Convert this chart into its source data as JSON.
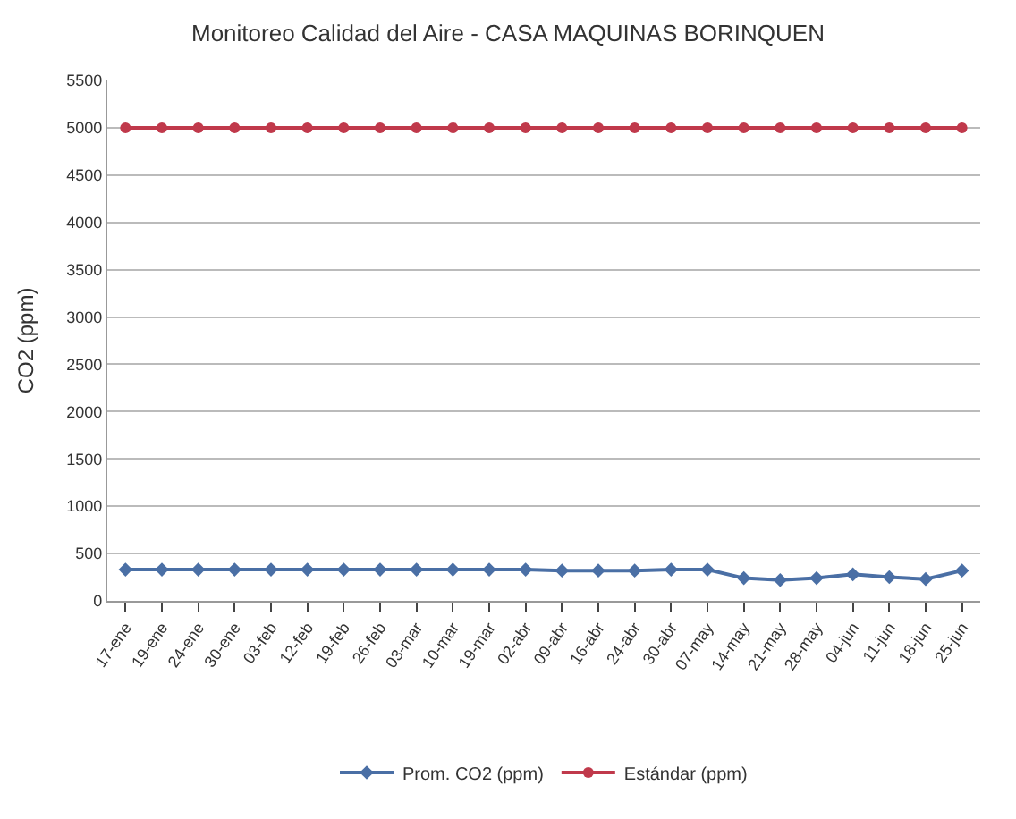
{
  "chart_data": {
    "type": "line",
    "title": "Monitoreo Calidad del Aire - CASA MAQUINAS BORINQUEN",
    "ylabel": "CO2 (ppm)",
    "categories": [
      "17-ene",
      "19-ene",
      "24-ene",
      "30-ene",
      "03-feb",
      "12-feb",
      "19-feb",
      "26-feb",
      "03-mar",
      "10-mar",
      "19-mar",
      "02-abr",
      "09-abr",
      "16-abr",
      "24-abr",
      "30-abr",
      "07-may",
      "14-may",
      "21-may",
      "28-may",
      "04-jun",
      "11-jun",
      "18-jun",
      "25-jun"
    ],
    "series": [
      {
        "name": "Prom. CO2 (ppm)",
        "color": "#4a6fa5",
        "marker": "diamond",
        "values": [
          330,
          330,
          330,
          330,
          330,
          330,
          330,
          330,
          330,
          330,
          330,
          330,
          320,
          320,
          320,
          330,
          330,
          240,
          220,
          240,
          280,
          250,
          230,
          320
        ]
      },
      {
        "name": "Estándar (ppm)",
        "color": "#c0394b",
        "marker": "circle",
        "values": [
          5000,
          5000,
          5000,
          5000,
          5000,
          5000,
          5000,
          5000,
          5000,
          5000,
          5000,
          5000,
          5000,
          5000,
          5000,
          5000,
          5000,
          5000,
          5000,
          5000,
          5000,
          5000,
          5000,
          5000
        ]
      }
    ],
    "ylim": [
      0,
      5500
    ],
    "yticks": [
      0,
      500,
      1000,
      1500,
      2000,
      2500,
      3000,
      3500,
      4000,
      4500,
      5000,
      5500
    ],
    "grid": "y",
    "legend": "bottom"
  }
}
